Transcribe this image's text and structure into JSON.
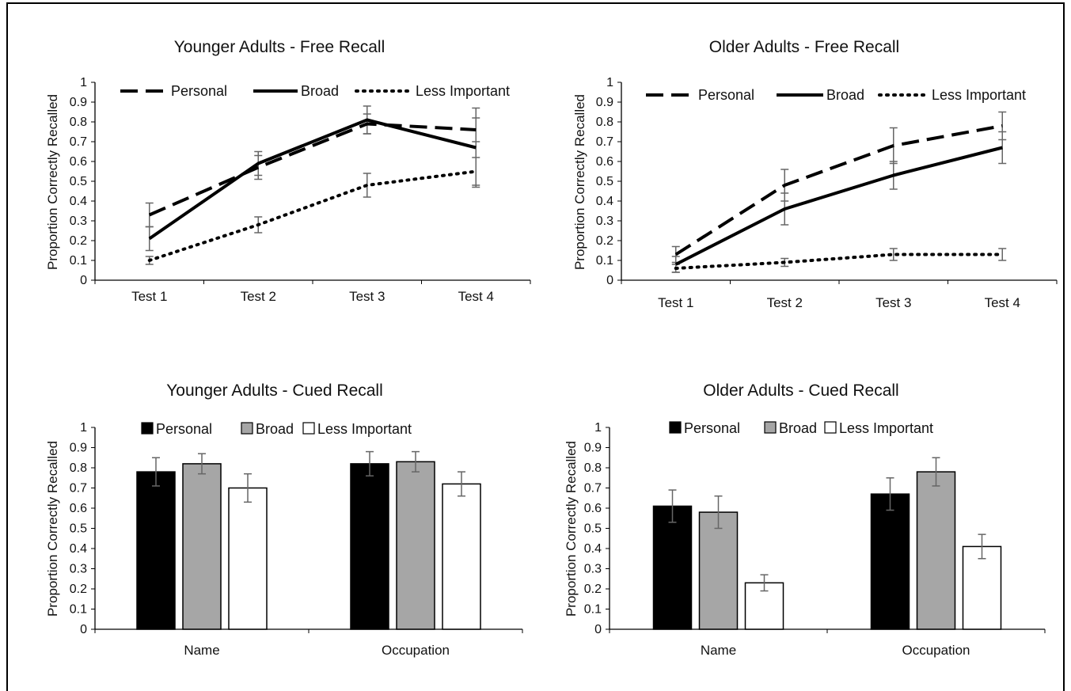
{
  "chart_data": [
    {
      "id": "ya-free",
      "type": "line",
      "title": "Younger Adults - Free Recall",
      "ylabel": "Proportion Correctly Recalled",
      "xlabel": "",
      "categories": [
        "Test 1",
        "Test 2",
        "Test 3",
        "Test 4"
      ],
      "ylim": [
        0,
        1
      ],
      "yticks": [
        "0",
        "0.1",
        "0.2",
        "0.3",
        "0.4",
        "0.5",
        "0.6",
        "0.7",
        "0.8",
        "0.9",
        "1"
      ],
      "legend_position": "top",
      "series": [
        {
          "name": "Personal",
          "style": "dashed",
          "values": [
            0.33,
            0.57,
            0.79,
            0.76
          ],
          "errors": [
            0.06,
            0.06,
            0.05,
            0.06
          ]
        },
        {
          "name": "Broad",
          "style": "solid",
          "values": [
            0.21,
            0.59,
            0.81,
            0.67
          ],
          "errors": [
            0.06,
            0.06,
            0.07,
            0.2
          ]
        },
        {
          "name": "Less Important",
          "style": "dotted",
          "values": [
            0.1,
            0.28,
            0.48,
            0.55
          ],
          "errors": [
            0.02,
            0.04,
            0.06,
            0.07
          ]
        }
      ]
    },
    {
      "id": "oa-free",
      "type": "line",
      "title": "Older Adults - Free Recall",
      "ylabel": "Proportion Correctly Recalled",
      "xlabel": "",
      "categories": [
        "Test 1",
        "Test 2",
        "Test 3",
        "Test 4"
      ],
      "ylim": [
        0,
        1
      ],
      "yticks": [
        "0",
        "0.1",
        "0.2",
        "0.3",
        "0.4",
        "0.5",
        "0.6",
        "0.7",
        "0.8",
        "0.9",
        "1"
      ],
      "legend_position": "top",
      "series": [
        {
          "name": "Personal",
          "style": "dashed",
          "values": [
            0.13,
            0.48,
            0.68,
            0.78
          ],
          "errors": [
            0.04,
            0.08,
            0.09,
            0.07
          ]
        },
        {
          "name": "Broad",
          "style": "solid",
          "values": [
            0.08,
            0.36,
            0.53,
            0.67
          ],
          "errors": [
            0.04,
            0.08,
            0.07,
            0.08
          ]
        },
        {
          "name": "Less Important",
          "style": "dotted",
          "values": [
            0.06,
            0.09,
            0.13,
            0.13
          ],
          "errors": [
            0.02,
            0.02,
            0.03,
            0.03
          ]
        }
      ]
    },
    {
      "id": "ya-cued",
      "type": "bar",
      "title": "Younger Adults - Cued Recall",
      "ylabel": "Proportion Correctly Recalled",
      "xlabel": "",
      "categories": [
        "Name",
        "Occupation"
      ],
      "ylim": [
        0,
        1
      ],
      "yticks": [
        "0",
        "0.1",
        "0.2",
        "0.3",
        "0.4",
        "0.5",
        "0.6",
        "0.7",
        "0.8",
        "0.9",
        "1"
      ],
      "legend_position": "top",
      "series": [
        {
          "name": "Personal",
          "color": "#000000",
          "values": [
            0.78,
            0.82
          ],
          "errors": [
            0.07,
            0.06
          ]
        },
        {
          "name": "Broad",
          "color": "#a6a6a6",
          "values": [
            0.82,
            0.83
          ],
          "errors": [
            0.05,
            0.05
          ]
        },
        {
          "name": "Less Important",
          "color": "#ffffff",
          "values": [
            0.7,
            0.72
          ],
          "errors": [
            0.07,
            0.06
          ]
        }
      ]
    },
    {
      "id": "oa-cued",
      "type": "bar",
      "title": "Older Adults - Cued Recall",
      "ylabel": "Proportion Correctly Recalled",
      "xlabel": "",
      "categories": [
        "Name",
        "Occupation"
      ],
      "ylim": [
        0,
        1
      ],
      "yticks": [
        "0",
        "0.1",
        "0.2",
        "0.3",
        "0.4",
        "0.5",
        "0.6",
        "0.7",
        "0.8",
        "0.9",
        "1"
      ],
      "legend_position": "top",
      "series": [
        {
          "name": "Personal",
          "color": "#000000",
          "values": [
            0.61,
            0.67
          ],
          "errors": [
            0.08,
            0.08
          ]
        },
        {
          "name": "Broad",
          "color": "#a6a6a6",
          "values": [
            0.58,
            0.78
          ],
          "errors": [
            0.08,
            0.07
          ]
        },
        {
          "name": "Less Important",
          "color": "#ffffff",
          "values": [
            0.23,
            0.41
          ],
          "errors": [
            0.04,
            0.06
          ]
        }
      ]
    }
  ]
}
